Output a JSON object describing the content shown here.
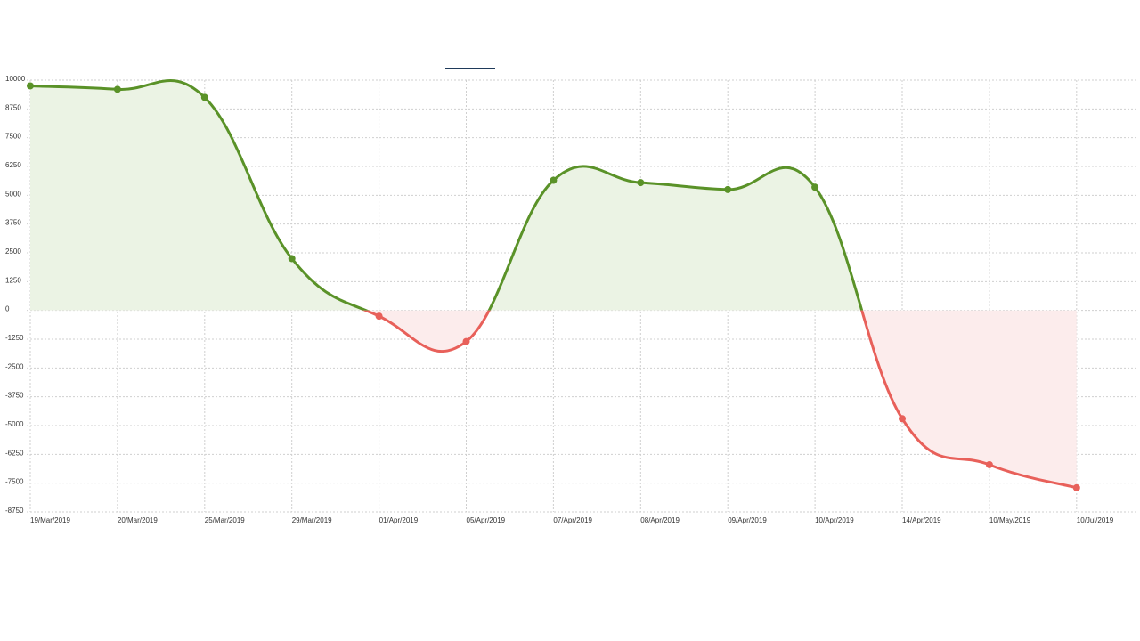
{
  "colors": {
    "positive_line": "#5a9228",
    "positive_fill": "#ebf3e4",
    "negative_line": "#e8605a",
    "negative_fill": "#fcecec",
    "grid": "#cfcfcf"
  },
  "tabs": [
    {
      "label": "",
      "active": false
    },
    {
      "label": "",
      "active": false
    },
    {
      "label": "",
      "active": true
    },
    {
      "label": "",
      "active": false
    },
    {
      "label": "",
      "active": false
    }
  ],
  "chart_data": {
    "type": "area",
    "title": "",
    "xlabel": "",
    "ylabel": "",
    "categories": [
      "19/Mar/2019",
      "20/Mar/2019",
      "25/Mar/2019",
      "29/Mar/2019",
      "01/Apr/2019",
      "05/Apr/2019",
      "07/Apr/2019",
      "08/Apr/2019",
      "09/Apr/2019",
      "10/Apr/2019",
      "14/Apr/2019",
      "10/May/2019",
      "10/Jul/2019"
    ],
    "values": [
      9750,
      9600,
      9250,
      2250,
      -250,
      -1350,
      5650,
      5550,
      5250,
      5350,
      -4700,
      -6700,
      -7700
    ],
    "ylim": [
      -8750,
      10000
    ],
    "yticks": [
      10000,
      8750,
      7500,
      6250,
      5000,
      3750,
      2500,
      1250,
      0,
      -1250,
      -2500,
      -3750,
      -5000,
      -6250,
      -7500,
      -8750
    ],
    "grid": true,
    "legend": "none"
  }
}
